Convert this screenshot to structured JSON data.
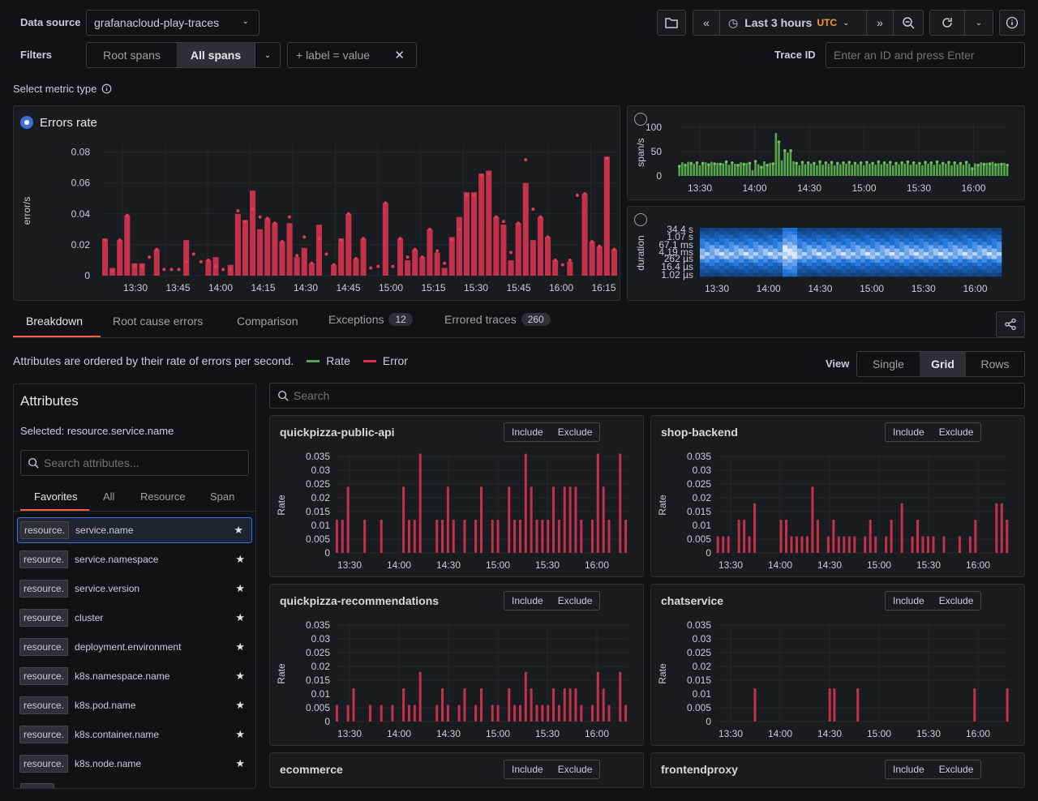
{
  "toolbar": {
    "data_source_label": "Data source",
    "data_source_value": "grafanacloud-play-traces",
    "filters_label": "Filters",
    "root_spans": "Root spans",
    "all_spans": "All spans",
    "label_filter": "+ label = value",
    "time_range": "Last 3 hours",
    "timezone": "UTC",
    "trace_id_label": "Trace ID",
    "trace_id_placeholder": "Enter an ID and press Enter"
  },
  "metric": {
    "label": "Select metric type",
    "errors_rate_title": "Errors rate"
  },
  "colors": {
    "error": "#c4314b",
    "rate": "#56a64b",
    "accent": "#3d71d9",
    "warn": "#ff9830"
  },
  "main_chart": {
    "ylabel": "error/s",
    "yticks": [
      "0",
      "0.02",
      "0.04",
      "0.06",
      "0.08"
    ],
    "xticks": [
      "13:30",
      "13:45",
      "14:00",
      "14:15",
      "14:30",
      "14:45",
      "15:00",
      "15:15",
      "15:30",
      "15:45",
      "16:00",
      "16:15"
    ]
  },
  "rate_chart": {
    "ylabel": "span/s",
    "yticks": [
      "0",
      "50",
      "100"
    ],
    "xticks": [
      "13:30",
      "14:00",
      "14:30",
      "15:00",
      "15:30",
      "16:00"
    ]
  },
  "duration_chart": {
    "ylabel": "duration",
    "yticks": [
      "34.4 s",
      "1.07 s",
      "67.1 ms",
      "4.19 ms",
      "262 µs",
      "16.4 µs",
      "1.02 µs"
    ],
    "xticks": [
      "13:30",
      "14:00",
      "14:30",
      "15:00",
      "15:30",
      "16:00"
    ]
  },
  "tabs": [
    {
      "label": "Breakdown"
    },
    {
      "label": "Root cause errors"
    },
    {
      "label": "Comparison"
    },
    {
      "label": "Exceptions",
      "badge": "12"
    },
    {
      "label": "Errored traces",
      "badge": "260"
    }
  ],
  "breakdown": {
    "description": "Attributes are ordered by their rate of errors per second.",
    "legend_rate": "Rate",
    "legend_error": "Error",
    "view_label": "View",
    "views": [
      "Single",
      "Grid",
      "Rows"
    ],
    "search_placeholder": "Search"
  },
  "attributes": {
    "title": "Attributes",
    "selected": "Selected: resource.service.name",
    "search_placeholder": "Search attributes...",
    "tabs": [
      "Favorites",
      "All",
      "Resource",
      "Span"
    ],
    "prefix": "resource.",
    "items": [
      "service.name",
      "service.namespace",
      "service.version",
      "cluster",
      "deployment.environment",
      "k8s.namespace.name",
      "k8s.pod.name",
      "k8s.container.name",
      "k8s.node.name"
    ]
  },
  "small_axis": {
    "ylabel": "Rate",
    "yticks": [
      "0",
      "0.005",
      "0.01",
      "0.015",
      "0.02",
      "0.025",
      "0.03",
      "0.035"
    ],
    "xticks": [
      "13:30",
      "14:00",
      "14:30",
      "15:00",
      "15:30",
      "16:00"
    ]
  },
  "panels": [
    {
      "title": "quickpizza-public-api",
      "include": "Include",
      "exclude": "Exclude"
    },
    {
      "title": "shop-backend",
      "include": "Include",
      "exclude": "Exclude"
    },
    {
      "title": "quickpizza-recommendations",
      "include": "Include",
      "exclude": "Exclude"
    },
    {
      "title": "chatservice",
      "include": "Include",
      "exclude": "Exclude"
    },
    {
      "title": "ecommerce",
      "include": "Include",
      "exclude": "Exclude"
    },
    {
      "title": "frontendproxy",
      "include": "Include",
      "exclude": "Exclude"
    }
  ],
  "chart_data": [
    {
      "type": "bar",
      "title": "Errors rate",
      "ylabel": "error/s",
      "ylim": [
        0,
        0.085
      ],
      "x_range": [
        "13:20",
        "16:20"
      ],
      "values": [
        0.024,
        0.005,
        0.023,
        0.039,
        0.008,
        0.008,
        0,
        0.017,
        0,
        0,
        0,
        0.023,
        0,
        0,
        0.01,
        0.012,
        0,
        0.007,
        0.04,
        0.036,
        0.055,
        0.03,
        0.037,
        0.034,
        0.022,
        0.034,
        0.012,
        0.018,
        0.008,
        0.033,
        0,
        0.007,
        0.024,
        0.04,
        0.011,
        0.024,
        0,
        0,
        0.047,
        0,
        0.024,
        0.01,
        0.017,
        0.012,
        0.03,
        0.015,
        0.005,
        0.025,
        0.038,
        0.054,
        0.054,
        0.066,
        0.068,
        0.038,
        0.033,
        0.01,
        0.034,
        0.06,
        0.023,
        0.038,
        0.025,
        0.01,
        0,
        0.009,
        0,
        0.053,
        0.022,
        0.019,
        0.077,
        0.017
      ],
      "dots": [
        0.023,
        0.003,
        0.023,
        0.039,
        0.006,
        0.006,
        0.012,
        0.017,
        0.004,
        0.004,
        0.004,
        0.009,
        0.014,
        0.009,
        0.01,
        0.006,
        0.004,
        0.004,
        0.042,
        0.035,
        0.043,
        0.038,
        0.037,
        0.034,
        0.022,
        0.038,
        0.013,
        0.025,
        0.008,
        0.024,
        0.014,
        0.007,
        0.023,
        0.04,
        0.011,
        0.024,
        0.005,
        0.006,
        0.047,
        0.006,
        0.024,
        0.012,
        0.017,
        0.012,
        0.03,
        0.016,
        0.008,
        0.023,
        0.03,
        0.052,
        0.052,
        0.065,
        0.066,
        0.038,
        0.035,
        0.015,
        0.034,
        0.075,
        0.043,
        0.038,
        0.025,
        0.01,
        0.007,
        0.01,
        0.052,
        0.053,
        0.022,
        0.019,
        0.076,
        0.017
      ]
    },
    {
      "type": "bar",
      "title": "",
      "ylabel": "span/s",
      "ylim": [
        0,
        110
      ],
      "x_range": [
        "13:20",
        "16:20"
      ],
      "values": [
        20,
        28,
        22,
        29,
        26,
        25,
        27,
        22,
        26,
        28,
        23,
        29,
        25,
        27,
        24,
        26,
        29,
        23,
        27,
        25,
        22,
        28,
        24,
        27,
        26,
        12,
        30,
        24,
        18,
        30,
        22,
        27,
        25,
        88,
        70,
        32,
        52,
        48,
        52,
        30,
        26,
        22,
        28,
        24,
        27,
        25,
        26,
        22,
        29,
        23,
        27,
        25,
        28,
        22,
        26,
        24,
        27,
        25,
        28,
        23,
        26,
        24,
        27,
        22,
        28,
        25,
        26,
        23,
        29,
        24,
        27,
        25,
        28,
        22,
        26,
        24,
        27,
        25,
        29,
        23,
        27,
        24,
        26,
        22,
        28,
        25,
        27,
        23,
        29,
        24,
        26,
        25,
        28,
        22,
        27,
        24,
        26,
        23,
        28,
        25,
        15,
        26,
        22,
        28,
        24,
        27,
        25,
        29,
        23,
        26,
        24,
        27,
        22
      ]
    },
    {
      "type": "heatmap",
      "title": "",
      "ylabel": "duration",
      "x_range": [
        "13:20",
        "16:20"
      ],
      "y_buckets": [
        "1.02 µs",
        "16.4 µs",
        "262 µs",
        "4.19 ms",
        "67.1 ms",
        "1.07 s",
        "34.4 s"
      ]
    },
    {
      "type": "bar",
      "title": "quickpizza-public-api",
      "series": [
        {
          "name": "Error",
          "values": [
            0.012,
            0.012,
            0.024,
            0,
            0,
            0.012,
            0,
            0,
            0.012,
            0,
            0,
            0,
            0.024,
            0.012,
            0.012,
            0.036,
            0,
            0,
            0.012,
            0.012,
            0.024,
            0.012,
            0,
            0.012,
            0,
            0.012,
            0.024,
            0,
            0.012,
            0.012,
            0,
            0.024,
            0.012,
            0.012,
            0.036,
            0.024,
            0.012,
            0.012,
            0.012,
            0.024,
            0.012,
            0.024,
            0.024,
            0.024,
            0.012,
            0,
            0.012,
            0.036,
            0.024,
            0.012,
            0,
            0.036,
            0.012
          ]
        }
      ],
      "ylim": [
        0,
        0.035
      ]
    },
    {
      "type": "bar",
      "title": "shop-backend",
      "series": [
        {
          "name": "Error",
          "values": [
            0.006,
            0.006,
            0.006,
            0,
            0.012,
            0.012,
            0.006,
            0.018,
            0,
            0,
            0,
            0,
            0.012,
            0.012,
            0.006,
            0.006,
            0.006,
            0.006,
            0.024,
            0.012,
            0,
            0.006,
            0.012,
            0.006,
            0.006,
            0.006,
            0.006,
            0,
            0.006,
            0.012,
            0.006,
            0,
            0.006,
            0.012,
            0,
            0.018,
            0,
            0.006,
            0.012,
            0.006,
            0.006,
            0.006,
            0,
            0.006,
            0,
            0,
            0.006,
            0,
            0.006,
            0.012,
            0,
            0,
            0,
            0.018,
            0.018,
            0.012
          ]
        }
      ],
      "ylim": [
        0,
        0.035
      ]
    },
    {
      "type": "bar",
      "title": "quickpizza-recommendations",
      "series": [
        {
          "name": "Error",
          "values": [
            0.006,
            0,
            0.006,
            0.012,
            0,
            0,
            0.006,
            0,
            0.006,
            0,
            0.006,
            0,
            0.012,
            0.006,
            0.006,
            0.018,
            0,
            0,
            0.006,
            0.012,
            0.006,
            0,
            0.006,
            0.012,
            0,
            0.006,
            0.012,
            0,
            0.006,
            0.006,
            0,
            0.012,
            0.006,
            0.006,
            0.018,
            0.012,
            0.006,
            0.006,
            0.006,
            0.012,
            0.006,
            0.012,
            0.012,
            0.012,
            0.006,
            0,
            0.006,
            0.018,
            0.012,
            0.006,
            0,
            0.018,
            0.006
          ]
        }
      ],
      "ylim": [
        0,
        0.035
      ]
    },
    {
      "type": "bar",
      "title": "chatservice",
      "series": [
        {
          "name": "Error",
          "values": [
            0,
            0,
            0,
            0,
            0,
            0,
            0,
            0,
            0.012,
            0,
            0,
            0,
            0,
            0,
            0,
            0,
            0,
            0,
            0,
            0,
            0,
            0,
            0,
            0,
            0.012,
            0.012,
            0,
            0,
            0,
            0,
            0.012,
            0,
            0,
            0,
            0,
            0,
            0,
            0,
            0,
            0,
            0,
            0,
            0,
            0,
            0,
            0,
            0,
            0,
            0,
            0,
            0,
            0,
            0,
            0,
            0,
            0.012,
            0,
            0,
            0,
            0,
            0,
            0,
            0.012
          ]
        }
      ],
      "ylim": [
        0,
        0.035
      ]
    }
  ]
}
